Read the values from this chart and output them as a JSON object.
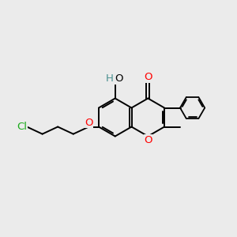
{
  "bg_color": "#ebebeb",
  "bond_color": "#000000",
  "o_color": "#ff0000",
  "cl_color": "#1aaa1a",
  "h_color": "#4a9090",
  "figsize": [
    3.0,
    3.0
  ],
  "dpi": 100,
  "xlim": [
    0,
    10
  ],
  "ylim": [
    0,
    10
  ]
}
